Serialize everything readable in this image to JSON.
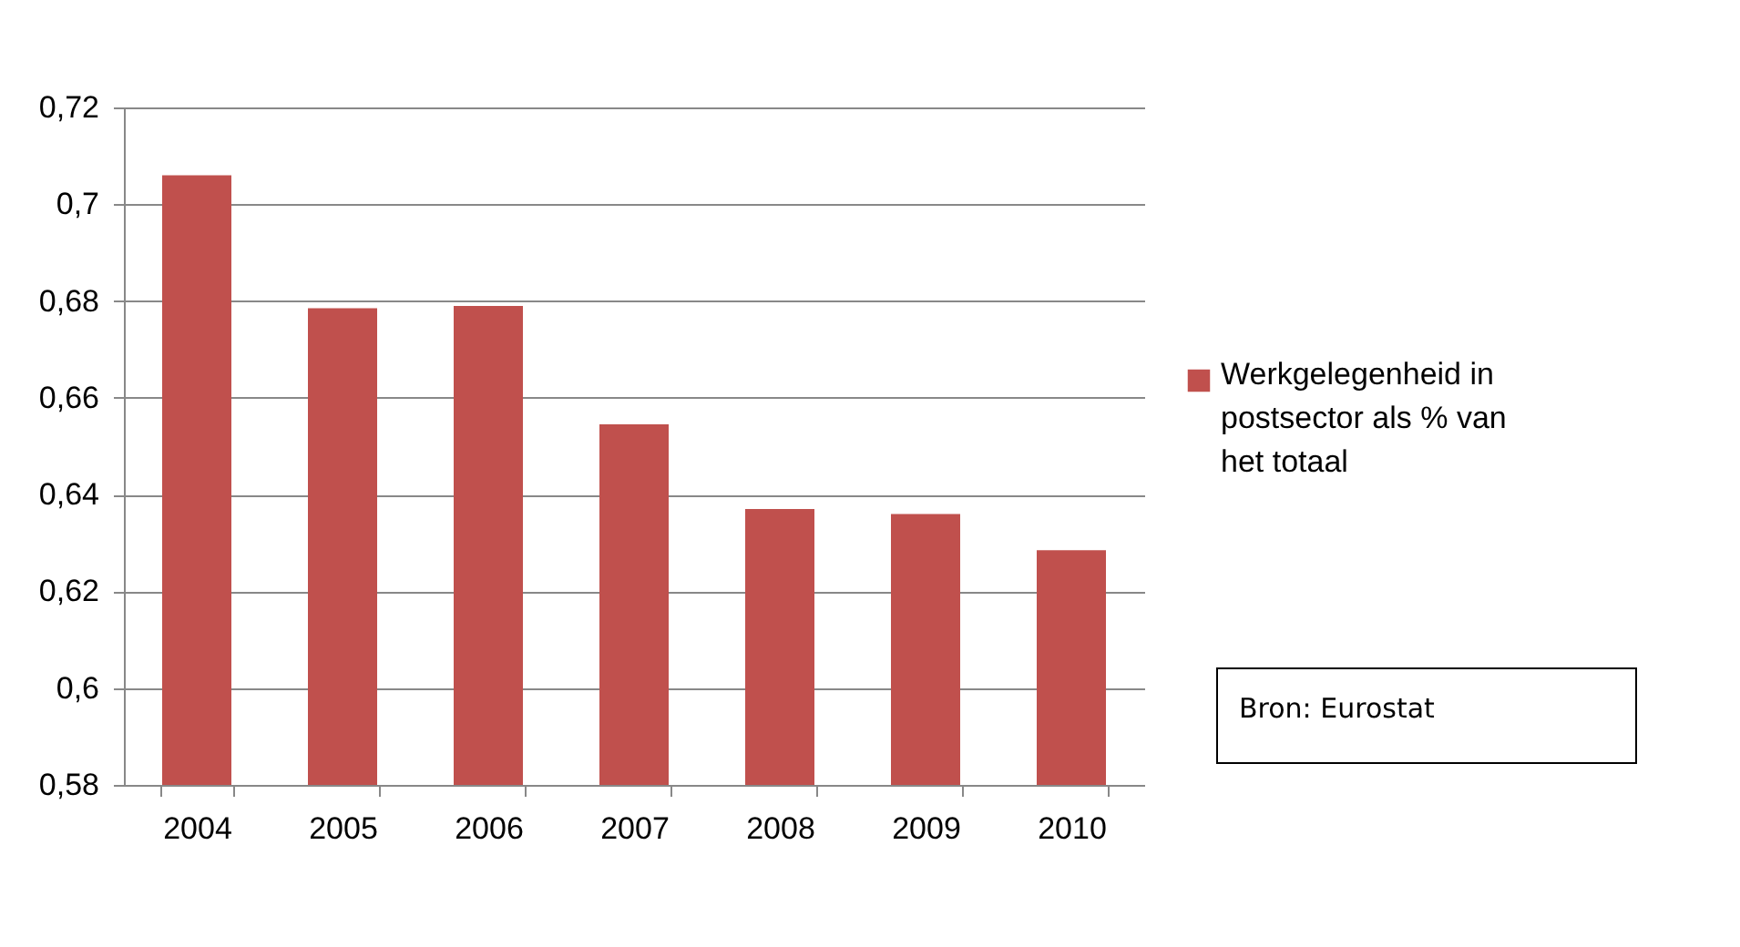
{
  "chart_data": {
    "type": "bar",
    "categories": [
      "2004",
      "2005",
      "2006",
      "2007",
      "2008",
      "2009",
      "2010"
    ],
    "series": [
      {
        "name": "Werkgelegenheid in postsector als % van het totaal",
        "color": "#c0504d",
        "values": [
          0.706,
          0.6785,
          0.679,
          0.6545,
          0.637,
          0.636,
          0.6285
        ]
      }
    ],
    "ylim": [
      0.58,
      0.72
    ],
    "yticks": [
      {
        "value": 0.58,
        "label": "0,58"
      },
      {
        "value": 0.6,
        "label": "0,6"
      },
      {
        "value": 0.62,
        "label": "0,62"
      },
      {
        "value": 0.64,
        "label": "0,64"
      },
      {
        "value": 0.66,
        "label": "0,66"
      },
      {
        "value": 0.68,
        "label": "0,68"
      },
      {
        "value": 0.7,
        "label": "0,7"
      },
      {
        "value": 0.72,
        "label": "0,72"
      }
    ],
    "grid": "y",
    "legend": "right",
    "annotations": [
      "Bron: Eurostat"
    ]
  }
}
